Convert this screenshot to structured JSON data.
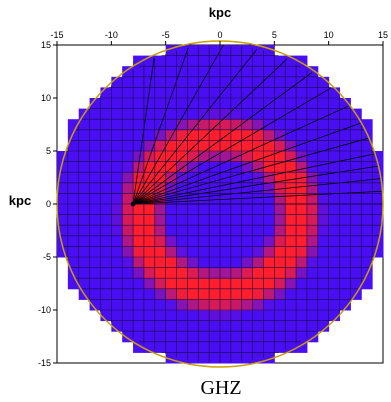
{
  "chart_data": {
    "type": "heatmap",
    "title": "",
    "caption": "GHZ",
    "xlabel": "kpc",
    "ylabel": "kpc",
    "xlim": [
      -15,
      15
    ],
    "ylim": [
      -15,
      15
    ],
    "x_ticks": [
      "-15",
      "-10",
      "-5",
      "0",
      "5",
      "10",
      "15"
    ],
    "y_ticks": [
      "15",
      "10",
      "5",
      "0",
      "-5",
      "-10",
      "-15"
    ],
    "grid": true,
    "grid_cell_kpc": 1,
    "disk_radius_kpc": 15,
    "ring": {
      "center_x": 0,
      "center_y": -1,
      "inner_radius_kpc": 6,
      "outer_radius_kpc": 8.5
    },
    "observer": {
      "x": -8,
      "y": 0
    },
    "sight_line_angles_deg": [
      0,
      3,
      6,
      9,
      12,
      16,
      20,
      25,
      31,
      37,
      44,
      52,
      61,
      71,
      82
    ],
    "colors": {
      "disk": "#4a0ef5",
      "ring": "#ff1e2d",
      "grid": "#1a0a40",
      "rim": "#c8a000"
    }
  }
}
